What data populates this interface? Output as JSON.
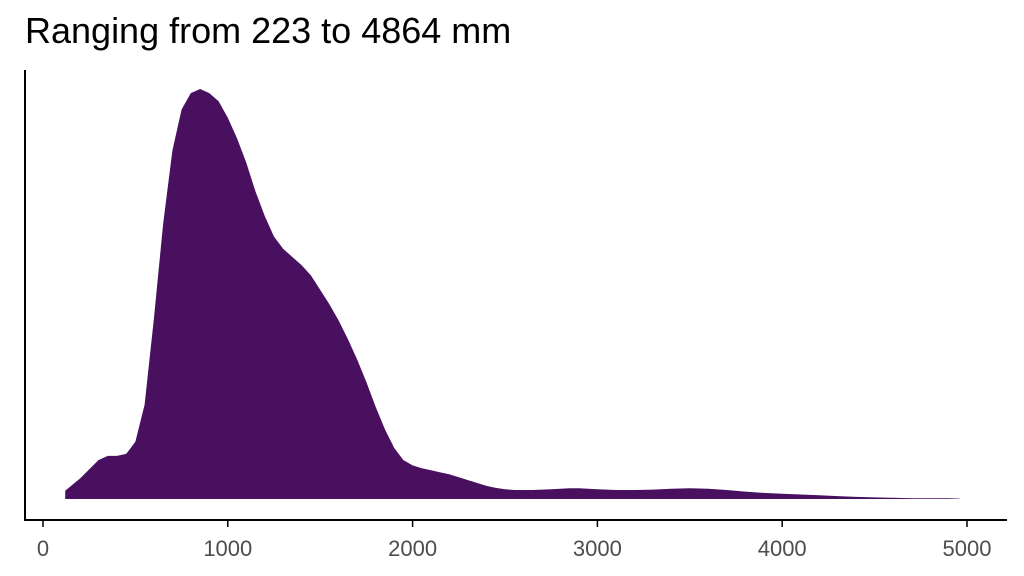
{
  "chart_data": {
    "type": "area",
    "title": "Ranging from 223 to 4864 mm",
    "xlabel": "",
    "ylabel": "",
    "xlim": [
      -100,
      5200
    ],
    "ylim": [
      0,
      1.0
    ],
    "x_ticks": [
      0,
      1000,
      2000,
      3000,
      4000,
      5000
    ],
    "grid": false,
    "legend": "none",
    "fill_color": "#48105f",
    "series": [
      {
        "x": [
          120,
          200,
          300,
          350,
          400,
          450,
          500,
          550,
          600,
          650,
          700,
          750,
          800,
          850,
          900,
          950,
          1000,
          1050,
          1100,
          1150,
          1200,
          1250,
          1300,
          1350,
          1400,
          1450,
          1500,
          1550,
          1600,
          1650,
          1700,
          1750,
          1800,
          1850,
          1900,
          1950,
          2000,
          2050,
          2100,
          2150,
          2200,
          2250,
          2300,
          2350,
          2400,
          2450,
          2500,
          2550,
          2600,
          2650,
          2700,
          2750,
          2800,
          2850,
          2900,
          2950,
          3000,
          3100,
          3200,
          3300,
          3400,
          3500,
          3600,
          3700,
          3800,
          3900,
          4000,
          4100,
          4200,
          4300,
          4400,
          4500,
          4600,
          4700,
          4800,
          4900,
          4960
        ],
        "y": [
          0.02,
          0.05,
          0.095,
          0.105,
          0.105,
          0.11,
          0.14,
          0.23,
          0.44,
          0.67,
          0.85,
          0.95,
          0.99,
          1.0,
          0.99,
          0.97,
          0.93,
          0.88,
          0.82,
          0.75,
          0.69,
          0.64,
          0.61,
          0.59,
          0.57,
          0.545,
          0.51,
          0.475,
          0.435,
          0.39,
          0.34,
          0.285,
          0.225,
          0.17,
          0.125,
          0.095,
          0.082,
          0.075,
          0.07,
          0.065,
          0.06,
          0.053,
          0.046,
          0.039,
          0.032,
          0.027,
          0.024,
          0.022,
          0.022,
          0.022,
          0.023,
          0.024,
          0.025,
          0.026,
          0.026,
          0.025,
          0.024,
          0.022,
          0.022,
          0.023,
          0.025,
          0.026,
          0.025,
          0.022,
          0.018,
          0.015,
          0.013,
          0.011,
          0.009,
          0.007,
          0.005,
          0.004,
          0.003,
          0.002,
          0.002,
          0.002,
          0.001
        ]
      }
    ]
  }
}
